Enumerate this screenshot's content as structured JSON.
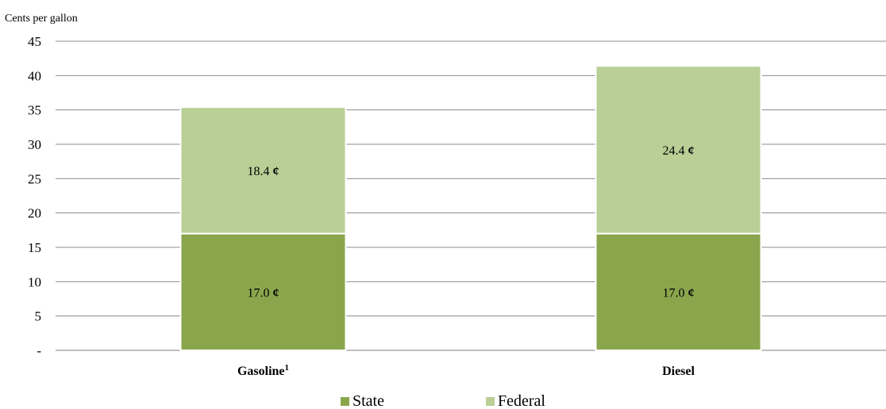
{
  "chart_data": {
    "type": "bar",
    "stacked": true,
    "unit_label": "Cents per gallon",
    "categories": [
      {
        "name": "Gasoline",
        "sup": "1"
      },
      {
        "name": "Diesel",
        "sup": ""
      }
    ],
    "series": [
      {
        "name": "State",
        "values": [
          17.0,
          17.0
        ],
        "labels": [
          "17.0",
          "17.0"
        ],
        "color": "#8aa64d"
      },
      {
        "name": "Federal",
        "values": [
          18.4,
          24.4
        ],
        "labels": [
          "18.4",
          "24.4"
        ],
        "color": "#b9cf96"
      }
    ],
    "value_suffix": "¢",
    "ylim": [
      0,
      45
    ],
    "yticks": [
      {
        "value": 0,
        "label": "-"
      },
      {
        "value": 5,
        "label": "5"
      },
      {
        "value": 10,
        "label": "10"
      },
      {
        "value": 15,
        "label": "15"
      },
      {
        "value": 20,
        "label": "20"
      },
      {
        "value": 25,
        "label": "25"
      },
      {
        "value": 30,
        "label": "30"
      },
      {
        "value": 35,
        "label": "35"
      },
      {
        "value": 40,
        "label": "40"
      },
      {
        "value": 45,
        "label": "45"
      }
    ],
    "grid": true,
    "legend_position": "bottom"
  }
}
